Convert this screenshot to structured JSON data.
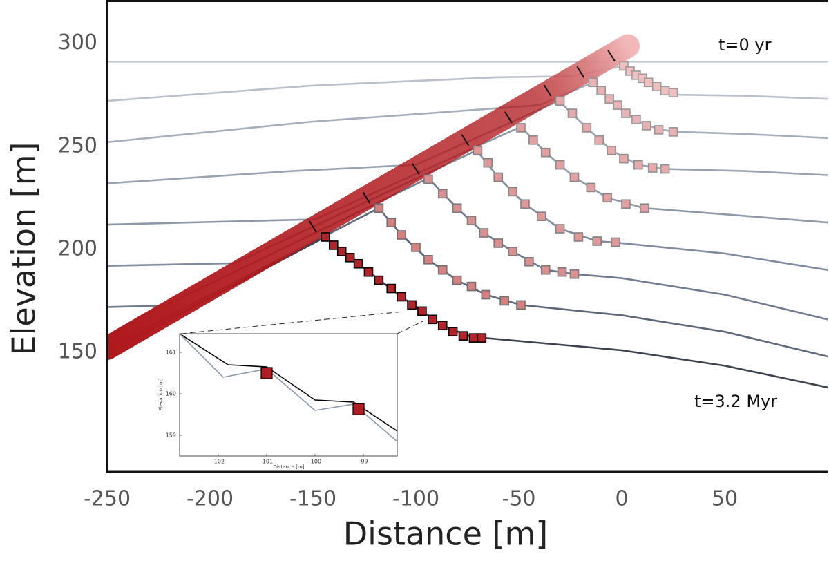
{
  "chart_data": [
    {
      "type": "line",
      "xlabel": "Distance [m]",
      "ylabel": "Elevation [m]",
      "annotations": [
        "t=0 yr",
        "t=3.2 Myr"
      ],
      "xlim": [
        -250,
        100
      ],
      "ylim": [
        92,
        321
      ],
      "xticks": [
        -250,
        -200,
        -150,
        -100,
        -50,
        0,
        50
      ],
      "yticks": [
        150,
        200,
        250,
        300
      ],
      "band": {
        "x": [
          -250,
          3
        ],
        "y": [
          152,
          298.7
        ],
        "color_start": "#b0181c",
        "color_end": "#f2b8b8"
      },
      "series": [
        {
          "color": "#c5cbd5",
          "x": [
            -250,
            100
          ],
          "y": [
            291,
            291
          ]
        },
        {
          "color": "#b8c0cc",
          "x": [
            -250,
            -150,
            -60,
            -25,
            1,
            9,
            17,
            25,
            28,
            60,
            100
          ],
          "y": [
            272,
            279.5,
            283.5,
            284,
            289,
            283,
            279,
            276,
            275,
            274.5,
            273
          ],
          "marker_x": [
            1,
            4,
            7,
            10,
            13,
            17,
            21,
            25
          ],
          "marker_y": [
            289,
            286.5,
            284.5,
            283,
            281,
            279,
            277,
            276
          ],
          "marker_color": "#f0c0c0",
          "marker_edge": "#9a9a9a"
        },
        {
          "color": "#a4aebd",
          "x": [
            -250,
            -150,
            -60,
            -40,
            -14,
            -6,
            2,
            12,
            25,
            28,
            60,
            100
          ],
          "y": [
            252,
            262,
            268.5,
            270,
            281,
            273,
            266,
            260,
            257,
            257,
            256,
            254
          ],
          "marker_x": [
            -14,
            -10,
            -6,
            -2,
            2,
            7,
            12,
            18,
            25
          ],
          "marker_y": [
            281,
            277,
            273,
            270,
            266,
            263,
            260,
            258,
            257
          ],
          "marker_color": "#eab3b3",
          "marker_edge": "#959595"
        },
        {
          "color": "#98a3b4",
          "x": [
            -250,
            -160,
            -100,
            -30.5,
            -17,
            -5,
            8,
            21,
            60,
            100
          ],
          "y": [
            232,
            238,
            241,
            272,
            259,
            248,
            241,
            239,
            238,
            236
          ],
          "marker_x": [
            -30,
            -24,
            -17,
            -11,
            -5,
            1,
            8,
            15,
            21
          ],
          "marker_y": [
            272,
            266,
            259,
            253,
            248,
            244,
            241,
            239.5,
            239
          ],
          "marker_color": "#e6aaaa",
          "marker_edge": "#8f8f8f"
        },
        {
          "color": "#8d99ab",
          "x": [
            -250,
            -170,
            -149,
            -49,
            -37,
            -23,
            -7,
            11,
            50,
            100
          ],
          "y": [
            212,
            214,
            214.5,
            259.5,
            247,
            235,
            225,
            220,
            217,
            213
          ],
          "marker_x": [
            -49,
            -43,
            -37,
            -30,
            -23,
            -15,
            -7,
            2,
            11
          ],
          "marker_y": [
            259,
            253,
            247,
            241,
            235,
            230,
            225,
            222,
            220
          ],
          "marker_color": "#e2a0a0",
          "marker_edge": "#888888"
        },
        {
          "color": "#7f8ba0",
          "x": [
            -250,
            -188,
            -70.5,
            -60,
            -47,
            -30,
            -12,
            0,
            50,
            100
          ],
          "y": [
            192,
            193.3,
            248,
            235,
            222,
            210,
            204,
            203,
            198,
            190
          ],
          "marker_x": [
            -70,
            -65,
            -60,
            -53,
            -47,
            -39,
            -30,
            -21,
            -12,
            -3
          ],
          "marker_y": [
            248,
            242,
            235,
            228,
            222,
            216,
            210,
            206,
            204,
            203.5
          ],
          "marker_color": "#de9898",
          "marker_edge": "#828282"
        },
        {
          "color": "#6f7b90",
          "x": [
            -250,
            -222,
            -94,
            -80,
            -67,
            -53,
            -37,
            -23,
            0,
            50,
            100
          ],
          "y": [
            172,
            172.7,
            234.5,
            220,
            208,
            199,
            190,
            188,
            186,
            178,
            166
          ],
          "marker_x": [
            -94,
            -87,
            -80,
            -73,
            -67,
            -60,
            -53,
            -45,
            -37,
            -29,
            -23
          ],
          "marker_y": [
            234,
            227,
            220,
            214,
            208,
            203,
            199,
            194,
            190,
            189,
            188
          ],
          "marker_color": "#da9090",
          "marker_edge": "#7a7a7a"
        },
        {
          "color": "#5d687c",
          "x": [
            -250,
            -118,
            -107,
            -94,
            -80,
            -66,
            -49,
            0,
            50,
            100
          ],
          "y": [
            152,
            220,
            207,
            195,
            185,
            178,
            173,
            168,
            160,
            148
          ],
          "marker_x": [
            -118,
            -112,
            -107,
            -100,
            -94,
            -87,
            -80,
            -73,
            -66,
            -57,
            -49
          ],
          "marker_y": [
            220,
            213,
            207,
            201,
            195,
            190,
            185,
            182,
            178,
            175,
            173
          ],
          "marker_color": "#d68080",
          "marker_edge": "#6e6e6e"
        },
        {
          "color": "#3c4350",
          "x": [
            -250,
            -144,
            -128,
            -107,
            -87,
            -72,
            -67,
            0,
            50,
            100
          ],
          "y": [
            150,
            206,
            193,
            177,
            163,
            157,
            157,
            151,
            143.5,
            133
          ],
          "marker_x": [
            -144,
            -140,
            -136,
            -132,
            -128,
            -123,
            -118,
            -112,
            -107,
            -102,
            -97,
            -92,
            -87,
            -82,
            -77,
            -72,
            -68
          ],
          "marker_y": [
            206,
            202,
            199,
            196,
            193,
            189,
            185,
            181,
            177,
            173,
            170,
            166,
            163,
            160,
            158,
            157,
            157
          ],
          "marker_color": "#b3232a",
          "marker_edge": "#000000"
        }
      ]
    },
    {
      "type": "line",
      "xlabel": "Distance [m]",
      "ylabel": "Elevation [m]",
      "xlim": [
        -102.8,
        -98.3
      ],
      "ylim": [
        158.5,
        161.45
      ],
      "xticks": [
        -102,
        -101,
        -100,
        -99
      ],
      "yticks": [
        159,
        160,
        161
      ],
      "series": [
        {
          "color": "#000000",
          "x": [
            -102.8,
            -101.8,
            -101,
            -100,
            -99.2,
            -98.3
          ],
          "y": [
            161.45,
            160.7,
            160.65,
            159.85,
            159.8,
            159.1
          ]
        },
        {
          "color": "#8a99ab",
          "x": [
            -102.8,
            -101.9,
            -101,
            -100,
            -99.2,
            -98.3
          ],
          "y": [
            161.45,
            160.4,
            160.6,
            159.6,
            159.75,
            158.85
          ]
        }
      ],
      "markers": {
        "x": [
          -101,
          -99.1
        ],
        "y": [
          160.5,
          159.63
        ],
        "color": "#b01e23",
        "edge": "#000000"
      }
    }
  ]
}
